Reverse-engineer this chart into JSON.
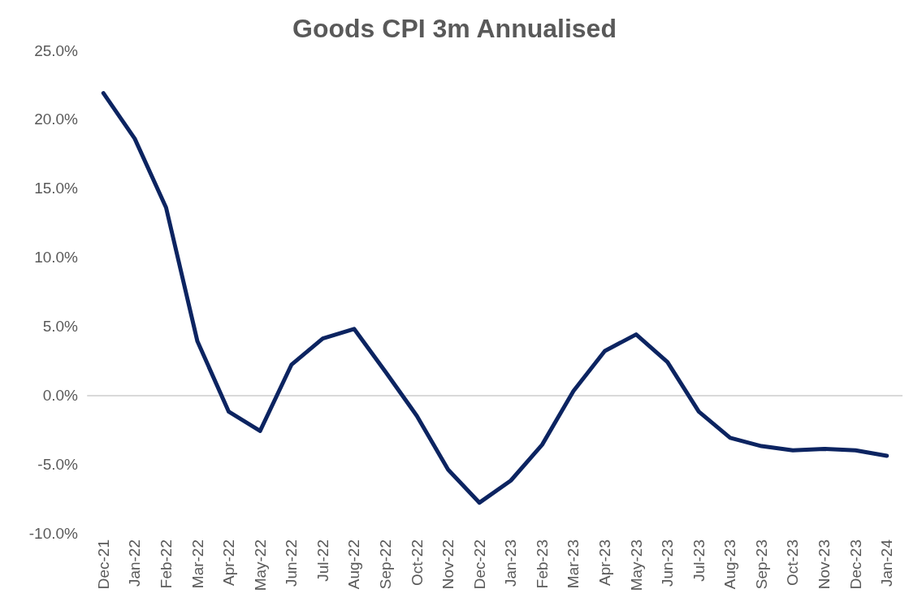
{
  "chart_data": {
    "type": "line",
    "title": "Goods CPI 3m Annualised",
    "categories": [
      "Dec-21",
      "Jan-22",
      "Feb-22",
      "Mar-22",
      "Apr-22",
      "May-22",
      "Jun-22",
      "Jul-22",
      "Aug-22",
      "Sep-22",
      "Oct-22",
      "Nov-22",
      "Dec-22",
      "Jan-23",
      "Feb-23",
      "Mar-23",
      "Apr-23",
      "May-23",
      "Jun-23",
      "Jul-23",
      "Aug-23",
      "Sep-23",
      "Oct-23",
      "Nov-23",
      "Dec-23",
      "Jan-24"
    ],
    "series": [
      {
        "color": "#0c2461",
        "values": [
          21.9,
          18.6,
          13.6,
          3.9,
          -1.2,
          -2.6,
          2.2,
          4.1,
          4.8,
          1.7,
          -1.5,
          -5.4,
          -7.8,
          -6.2,
          -3.6,
          0.3,
          3.2,
          4.4,
          2.4,
          -1.2,
          -3.1,
          -3.7,
          -4.0,
          -3.9,
          -4.0,
          -4.4
        ]
      }
    ],
    "ylim": [
      -10,
      25
    ],
    "yticks": [
      {
        "value": -10,
        "label": "-10.0%"
      },
      {
        "value": -5,
        "label": "-5.0%"
      },
      {
        "value": 0,
        "label": "0.0%"
      },
      {
        "value": 5,
        "label": "5.0%"
      },
      {
        "value": 10,
        "label": "10.0%"
      },
      {
        "value": 15,
        "label": "15.0%"
      },
      {
        "value": 20,
        "label": "20.0%"
      },
      {
        "value": 25,
        "label": "25.0%"
      }
    ],
    "marker": "none",
    "line_style": "solid"
  }
}
